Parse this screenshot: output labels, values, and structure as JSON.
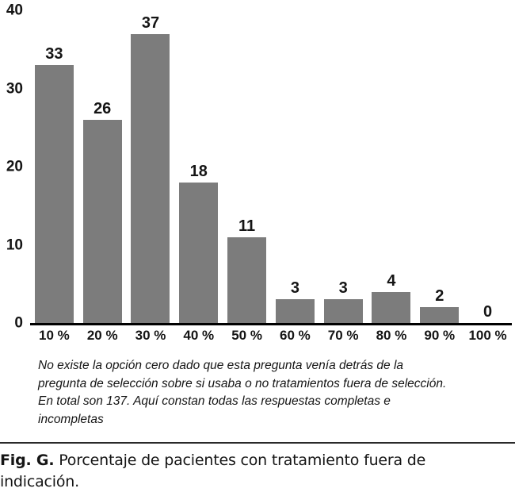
{
  "chart_data": {
    "type": "bar",
    "categories": [
      "10 %",
      "20 %",
      "30 %",
      "40 %",
      "50 %",
      "60 %",
      "70 %",
      "80 %",
      "90 %",
      "100 %"
    ],
    "values": [
      33,
      26,
      37,
      18,
      11,
      3,
      3,
      4,
      2,
      0
    ],
    "title": "",
    "xlabel": "",
    "ylabel": "",
    "ylim": [
      0,
      40
    ],
    "yticks": [
      0,
      10,
      20,
      30,
      40
    ],
    "grid": false,
    "legend": false,
    "data_labels": true,
    "bar_color": "#7c7c7c",
    "axis_color": "#000000",
    "text_color": "#151515"
  },
  "note": {
    "lines": [
      "No existe la opción cero dado que esta pregunta venía detrás de la",
      "pregunta de selección sobre si usaba o no tratamientos fuera de selección.",
      "En total son 137. Aquí constan todas las respuestas completas e",
      "incompletas"
    ]
  },
  "caption": {
    "label": "Fig. G.",
    "lines": [
      "Porcentaje de pacientes con tratamiento fuera de",
      "indicación."
    ]
  }
}
